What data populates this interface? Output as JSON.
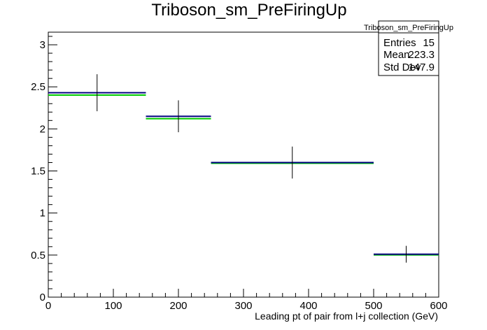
{
  "chart_data": {
    "type": "histogram",
    "title": "Triboson_sm_PreFiringUp",
    "xlabel": "Leading pt of pair from l+j collection (GeV)",
    "ylabel": "",
    "xlim": [
      0,
      600
    ],
    "ylim": [
      0,
      3.15
    ],
    "x_ticks": [
      0,
      100,
      200,
      300,
      400,
      500,
      600
    ],
    "y_ticks": [
      0,
      0.5,
      1,
      1.5,
      2,
      2.5,
      3
    ],
    "x_tick_labels": [
      "0",
      "100",
      "200",
      "300",
      "400",
      "500",
      "600"
    ],
    "y_tick_labels": [
      "0",
      "0.5",
      "1",
      "1.5",
      "2",
      "2.5",
      "3"
    ],
    "grid": false,
    "colors": {
      "nominal": "#00007f",
      "variation": "#00cc00",
      "error": "#000000"
    },
    "bins": [
      {
        "low": 0,
        "high": 150,
        "center": 75,
        "value": 2.43,
        "variation": 2.41,
        "err": 0.22
      },
      {
        "low": 150,
        "high": 250,
        "center": 200,
        "value": 2.15,
        "variation": 2.13,
        "err": 0.19
      },
      {
        "low": 250,
        "high": 500,
        "center": 375,
        "value": 1.6,
        "variation": 1.6,
        "err": 0.19
      },
      {
        "low": 500,
        "high": 600,
        "center": 550,
        "value": 0.51,
        "variation": 0.51,
        "err": 0.1
      }
    ],
    "stats_box": {
      "title": "Triboson_sm_PreFiringUp",
      "rows": [
        {
          "label": "Entries",
          "value": "15"
        },
        {
          "label": "Mean",
          "value": "223.3"
        },
        {
          "label": "Std Dev",
          "value": "147.9"
        }
      ]
    }
  }
}
